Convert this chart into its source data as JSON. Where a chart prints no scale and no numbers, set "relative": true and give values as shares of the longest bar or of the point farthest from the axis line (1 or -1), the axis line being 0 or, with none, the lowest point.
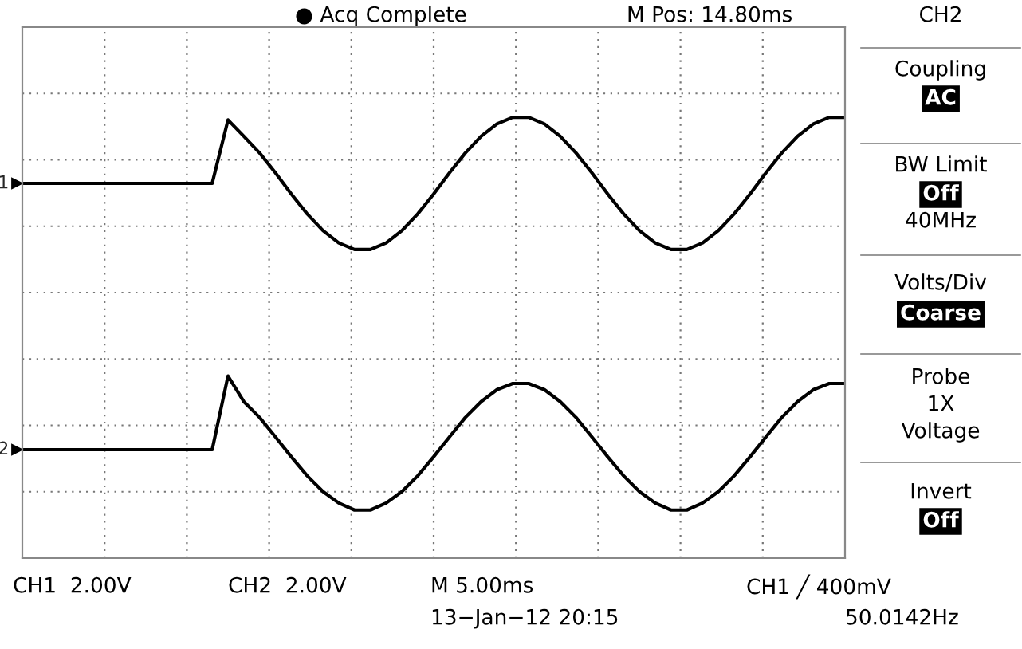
{
  "chart_data": {
    "type": "line",
    "relative": true,
    "grid": true,
    "legend": "left",
    "categories": [
      null,
      null,
      null,
      null,
      null,
      null,
      null,
      null,
      null,
      null,
      null,
      null,
      null,
      null,
      null,
      null,
      null,
      null,
      null,
      null,
      null,
      null,
      null,
      null,
      null,
      null,
      null,
      null,
      null,
      null,
      null,
      null,
      null,
      null,
      null,
      null,
      null,
      null,
      null,
      null,
      null,
      null,
      null,
      null,
      null,
      null,
      null,
      null,
      null,
      null,
      null,
      null,
      null
    ],
    "series": [
      {
        "name": "1",
        "color": "#000000",
        "values": [
          0.85,
          0.85,
          0.85,
          0.85,
          0.85,
          0.85,
          0.85,
          0.85,
          0.85,
          0.85,
          0.85,
          0.85,
          0.85,
          0.994,
          0.957,
          0.919,
          0.874,
          0.826,
          0.781,
          0.743,
          0.715,
          0.7,
          0.7,
          0.715,
          0.743,
          0.781,
          0.826,
          0.874,
          0.919,
          0.957,
          0.985,
          1.0,
          1.0,
          0.985,
          0.957,
          0.919,
          0.874,
          0.826,
          0.781,
          0.743,
          0.715,
          0.7,
          0.7,
          0.715,
          0.743,
          0.781,
          0.826,
          0.874,
          0.919,
          0.957,
          0.985,
          1.0,
          1.0
        ]
      },
      {
        "name": "2",
        "color": "#000000",
        "values": [
          0.246,
          0.246,
          0.246,
          0.246,
          0.246,
          0.246,
          0.246,
          0.246,
          0.246,
          0.246,
          0.246,
          0.246,
          0.246,
          0.413,
          0.355,
          0.319,
          0.275,
          0.23,
          0.187,
          0.151,
          0.125,
          0.109,
          0.109,
          0.125,
          0.151,
          0.187,
          0.23,
          0.275,
          0.319,
          0.355,
          0.382,
          0.396,
          0.396,
          0.382,
          0.355,
          0.319,
          0.275,
          0.23,
          0.187,
          0.151,
          0.125,
          0.109,
          0.109,
          0.125,
          0.151,
          0.187,
          0.23,
          0.275,
          0.319,
          0.355,
          0.382,
          0.396,
          0.396
        ]
      }
    ],
    "annotations": [
      "● Acq Complete",
      "M Pos: 14.80ms",
      "CH2",
      "Coupling",
      "AC",
      "BW Limit",
      "Off",
      "40MHz",
      "Volts/Div",
      "Coarse",
      "Probe",
      "1X",
      "Voltage",
      "Invert",
      "Off",
      "CH1  2.00V",
      "CH2  2.00V",
      "M 5.00ms",
      "13−Jan−12 20:15",
      "CH1 ╱ 400mV",
      "50.0142Hz"
    ]
  }
}
